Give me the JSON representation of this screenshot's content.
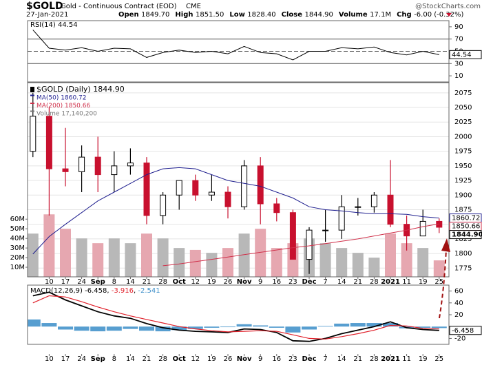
{
  "header": {
    "symbol": "$GOLD",
    "name": "Gold - Continuous Contract (EOD)",
    "exchange": "CME",
    "watermark": "@StockCharts.com",
    "date": "27-Jan-2021",
    "quote": [
      {
        "label": "Open",
        "value": "1849.70"
      },
      {
        "label": "High",
        "value": "1851.50"
      },
      {
        "label": "Low",
        "value": "1828.40"
      },
      {
        "label": "Close",
        "value": "1844.90"
      },
      {
        "label": "Volume",
        "value": "17.1M"
      },
      {
        "label": "Chg",
        "value": "-6.00 (-0.32%)"
      }
    ]
  },
  "chart_data": [
    {
      "type": "line",
      "name": "RSI(14)",
      "last": "44.54",
      "color": "#000000",
      "values": [
        85,
        55,
        52,
        56,
        50,
        55,
        54,
        40,
        48,
        52,
        48,
        50,
        46,
        58,
        48,
        46,
        36,
        50,
        50,
        56,
        54,
        57,
        48,
        44,
        50,
        44.54
      ],
      "levels": [
        70,
        50,
        30
      ],
      "ylim": [
        0,
        100
      ],
      "yticks": [
        10,
        30,
        50,
        70,
        90
      ]
    },
    {
      "type": "candlestick",
      "categories": [
        null,
        "10",
        "17",
        "24",
        "Sep",
        "8",
        "14",
        "21",
        "28",
        "Oct",
        "12",
        "19",
        "26",
        "Nov",
        "9",
        "16",
        "23",
        "Dec",
        "7",
        "14",
        "21",
        "28",
        "2021",
        "11",
        "19",
        "25"
      ],
      "series": [
        {
          "type": "candlestick",
          "name": "$GOLD (Daily)",
          "last": "1844.90",
          "up_color": "#000000",
          "down_color": "#c8102e",
          "open": [
            1975,
            2035,
            1945,
            1940,
            1965,
            1935,
            1950,
            1955,
            1865,
            1900,
            1925,
            1900,
            1905,
            1880,
            1950,
            1885,
            1870,
            1790,
            1840,
            1840,
            1880,
            1880,
            1900,
            1850,
            1830,
            1855
          ],
          "high": [
            2075,
            2050,
            2015,
            1985,
            2000,
            1975,
            1980,
            1965,
            1905,
            1925,
            1935,
            1935,
            1915,
            1960,
            1965,
            1895,
            1875,
            1845,
            1875,
            1900,
            1895,
            1905,
            1960,
            1865,
            1875,
            1860
          ],
          "low": [
            1965,
            1865,
            1915,
            1905,
            1905,
            1905,
            1935,
            1850,
            1850,
            1875,
            1890,
            1890,
            1860,
            1875,
            1850,
            1855,
            1790,
            1765,
            1820,
            1825,
            1865,
            1870,
            1845,
            1805,
            1830,
            1835
          ],
          "close": [
            2035,
            1945,
            1940,
            1965,
            1935,
            1950,
            1955,
            1865,
            1900,
            1925,
            1900,
            1905,
            1880,
            1950,
            1885,
            1870,
            1790,
            1840,
            1840,
            1880,
            1880,
            1900,
            1850,
            1830,
            1855,
            1844.9
          ]
        },
        {
          "type": "line",
          "name": "MA(50)",
          "last": "1860.72",
          "color": "#1f1f8f",
          "values": [
            1799,
            1829,
            1850,
            1870,
            1890,
            1905,
            1920,
            1935,
            1945,
            1947,
            1945,
            1935,
            1925,
            1920,
            1915,
            1905,
            1895,
            1880,
            1875,
            1873,
            1870,
            1868,
            1868,
            1867,
            1863,
            1860.72
          ]
        },
        {
          "type": "line",
          "name": "MA(200)",
          "last": "1850.66",
          "color": "#d0304a",
          "values": [
            null,
            null,
            null,
            null,
            null,
            null,
            null,
            null,
            1779,
            1782,
            1786,
            1790,
            1794,
            1798,
            1802,
            1806,
            1810,
            1813,
            1817,
            1821,
            1825,
            1830,
            1835,
            1840,
            1846,
            1850.66
          ]
        },
        {
          "type": "bar",
          "name": "Volume",
          "last": "17,140,200",
          "axis": "y2",
          "color": "#b8b8b8",
          "down_color": "#e6a7b0",
          "values": [
            45000000,
            65000000,
            50000000,
            40000000,
            35000000,
            40000000,
            35000000,
            45000000,
            40000000,
            30000000,
            28000000,
            25000000,
            30000000,
            45000000,
            50000000,
            30000000,
            35000000,
            40000000,
            35000000,
            30000000,
            25000000,
            20000000,
            45000000,
            35000000,
            30000000,
            17140200
          ]
        }
      ],
      "ylim": [
        1760,
        2092.5
      ],
      "yticks": [
        1775,
        1800,
        1825,
        1850,
        1875,
        1900,
        1925,
        1950,
        1975,
        2000,
        2025,
        2050,
        2075
      ],
      "y2lim": [
        0,
        202000000
      ],
      "y2ticks": [
        {
          "value": 10000000,
          "label": "10M"
        },
        {
          "value": 20000000,
          "label": "20M"
        },
        {
          "value": 30000000,
          "label": "30M"
        },
        {
          "value": 40000000,
          "label": "40M"
        },
        {
          "value": 50000000,
          "label": "50M"
        },
        {
          "value": 60000000,
          "label": "60M"
        }
      ],
      "grid": true
    },
    {
      "type": "line",
      "name": "MACD(12,26,9)",
      "series": [
        {
          "type": "line",
          "name": "MACD",
          "last": "-6.458",
          "color": "#000000",
          "values": [
            52,
            58,
            45,
            35,
            25,
            18,
            14,
            5,
            -2,
            -6,
            -8,
            -9,
            -10,
            -4,
            -5,
            -10,
            -24,
            -25,
            -20,
            -12,
            -6,
            0,
            8,
            -2,
            -5,
            -6.458
          ]
        },
        {
          "type": "line",
          "name": "Signal",
          "last": "-3.916",
          "color": "#e0202a",
          "values": [
            40,
            52,
            50,
            42,
            33,
            25,
            18,
            12,
            6,
            0,
            -4,
            -7,
            -9,
            -8,
            -7,
            -8,
            -14,
            -20,
            -21,
            -17,
            -12,
            -6,
            2,
            1,
            -3,
            -3.916
          ]
        },
        {
          "type": "bar",
          "name": "Histogram",
          "last": "-2.541",
          "color": "#3a8dc8",
          "values": [
            12,
            6,
            -5,
            -7,
            -8,
            -7,
            -4,
            -7,
            -8,
            -6,
            -4,
            -2,
            -1,
            4,
            2,
            -2,
            -10,
            -5,
            1,
            5,
            6,
            6,
            6,
            -3,
            -2,
            -2.541
          ]
        }
      ],
      "ylim": [
        -30,
        70
      ],
      "yticks": [
        -20,
        20,
        40,
        60
      ]
    }
  ]
}
